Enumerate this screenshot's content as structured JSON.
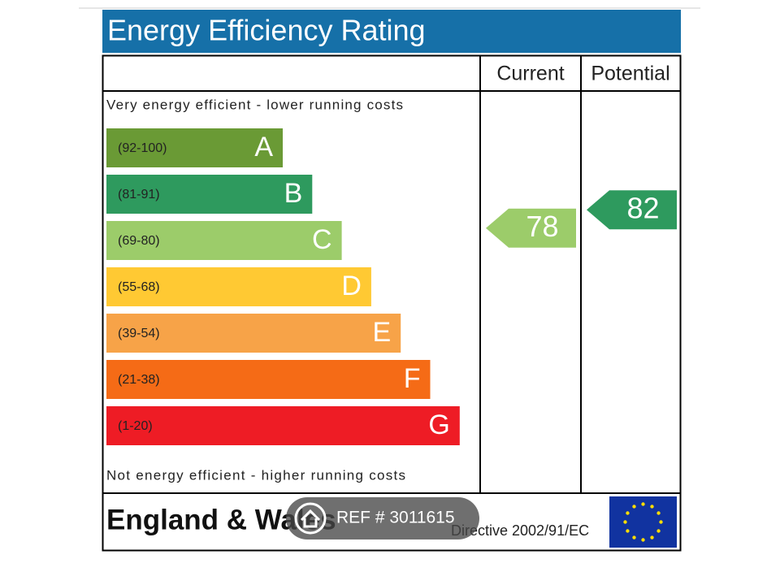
{
  "title": "Energy Efficiency Rating",
  "columns": {
    "current": "Current",
    "potential": "Potential"
  },
  "top_note": "Very energy efficient - lower running costs",
  "bottom_note": "Not energy efficient - higher running costs",
  "bands": [
    {
      "range": "(92-100)",
      "letter": "A",
      "color": "#6a9a35"
    },
    {
      "range": "(81-91)",
      "letter": "B",
      "color": "#2e9a5e"
    },
    {
      "range": "(69-80)",
      "letter": "C",
      "color": "#9ccc6a"
    },
    {
      "range": "(55-68)",
      "letter": "D",
      "color": "#ffc933"
    },
    {
      "range": "(39-54)",
      "letter": "E",
      "color": "#f7a348"
    },
    {
      "range": "(21-38)",
      "letter": "F",
      "color": "#f56b16"
    },
    {
      "range": "(1-20)",
      "letter": "G",
      "color": "#ee1c25"
    }
  ],
  "current": 78,
  "potential": 82,
  "footer": {
    "region": "England & Wales",
    "directive": "Directive 2002/91/EC"
  },
  "overlay": {
    "ref": "REF # 3011615"
  }
}
